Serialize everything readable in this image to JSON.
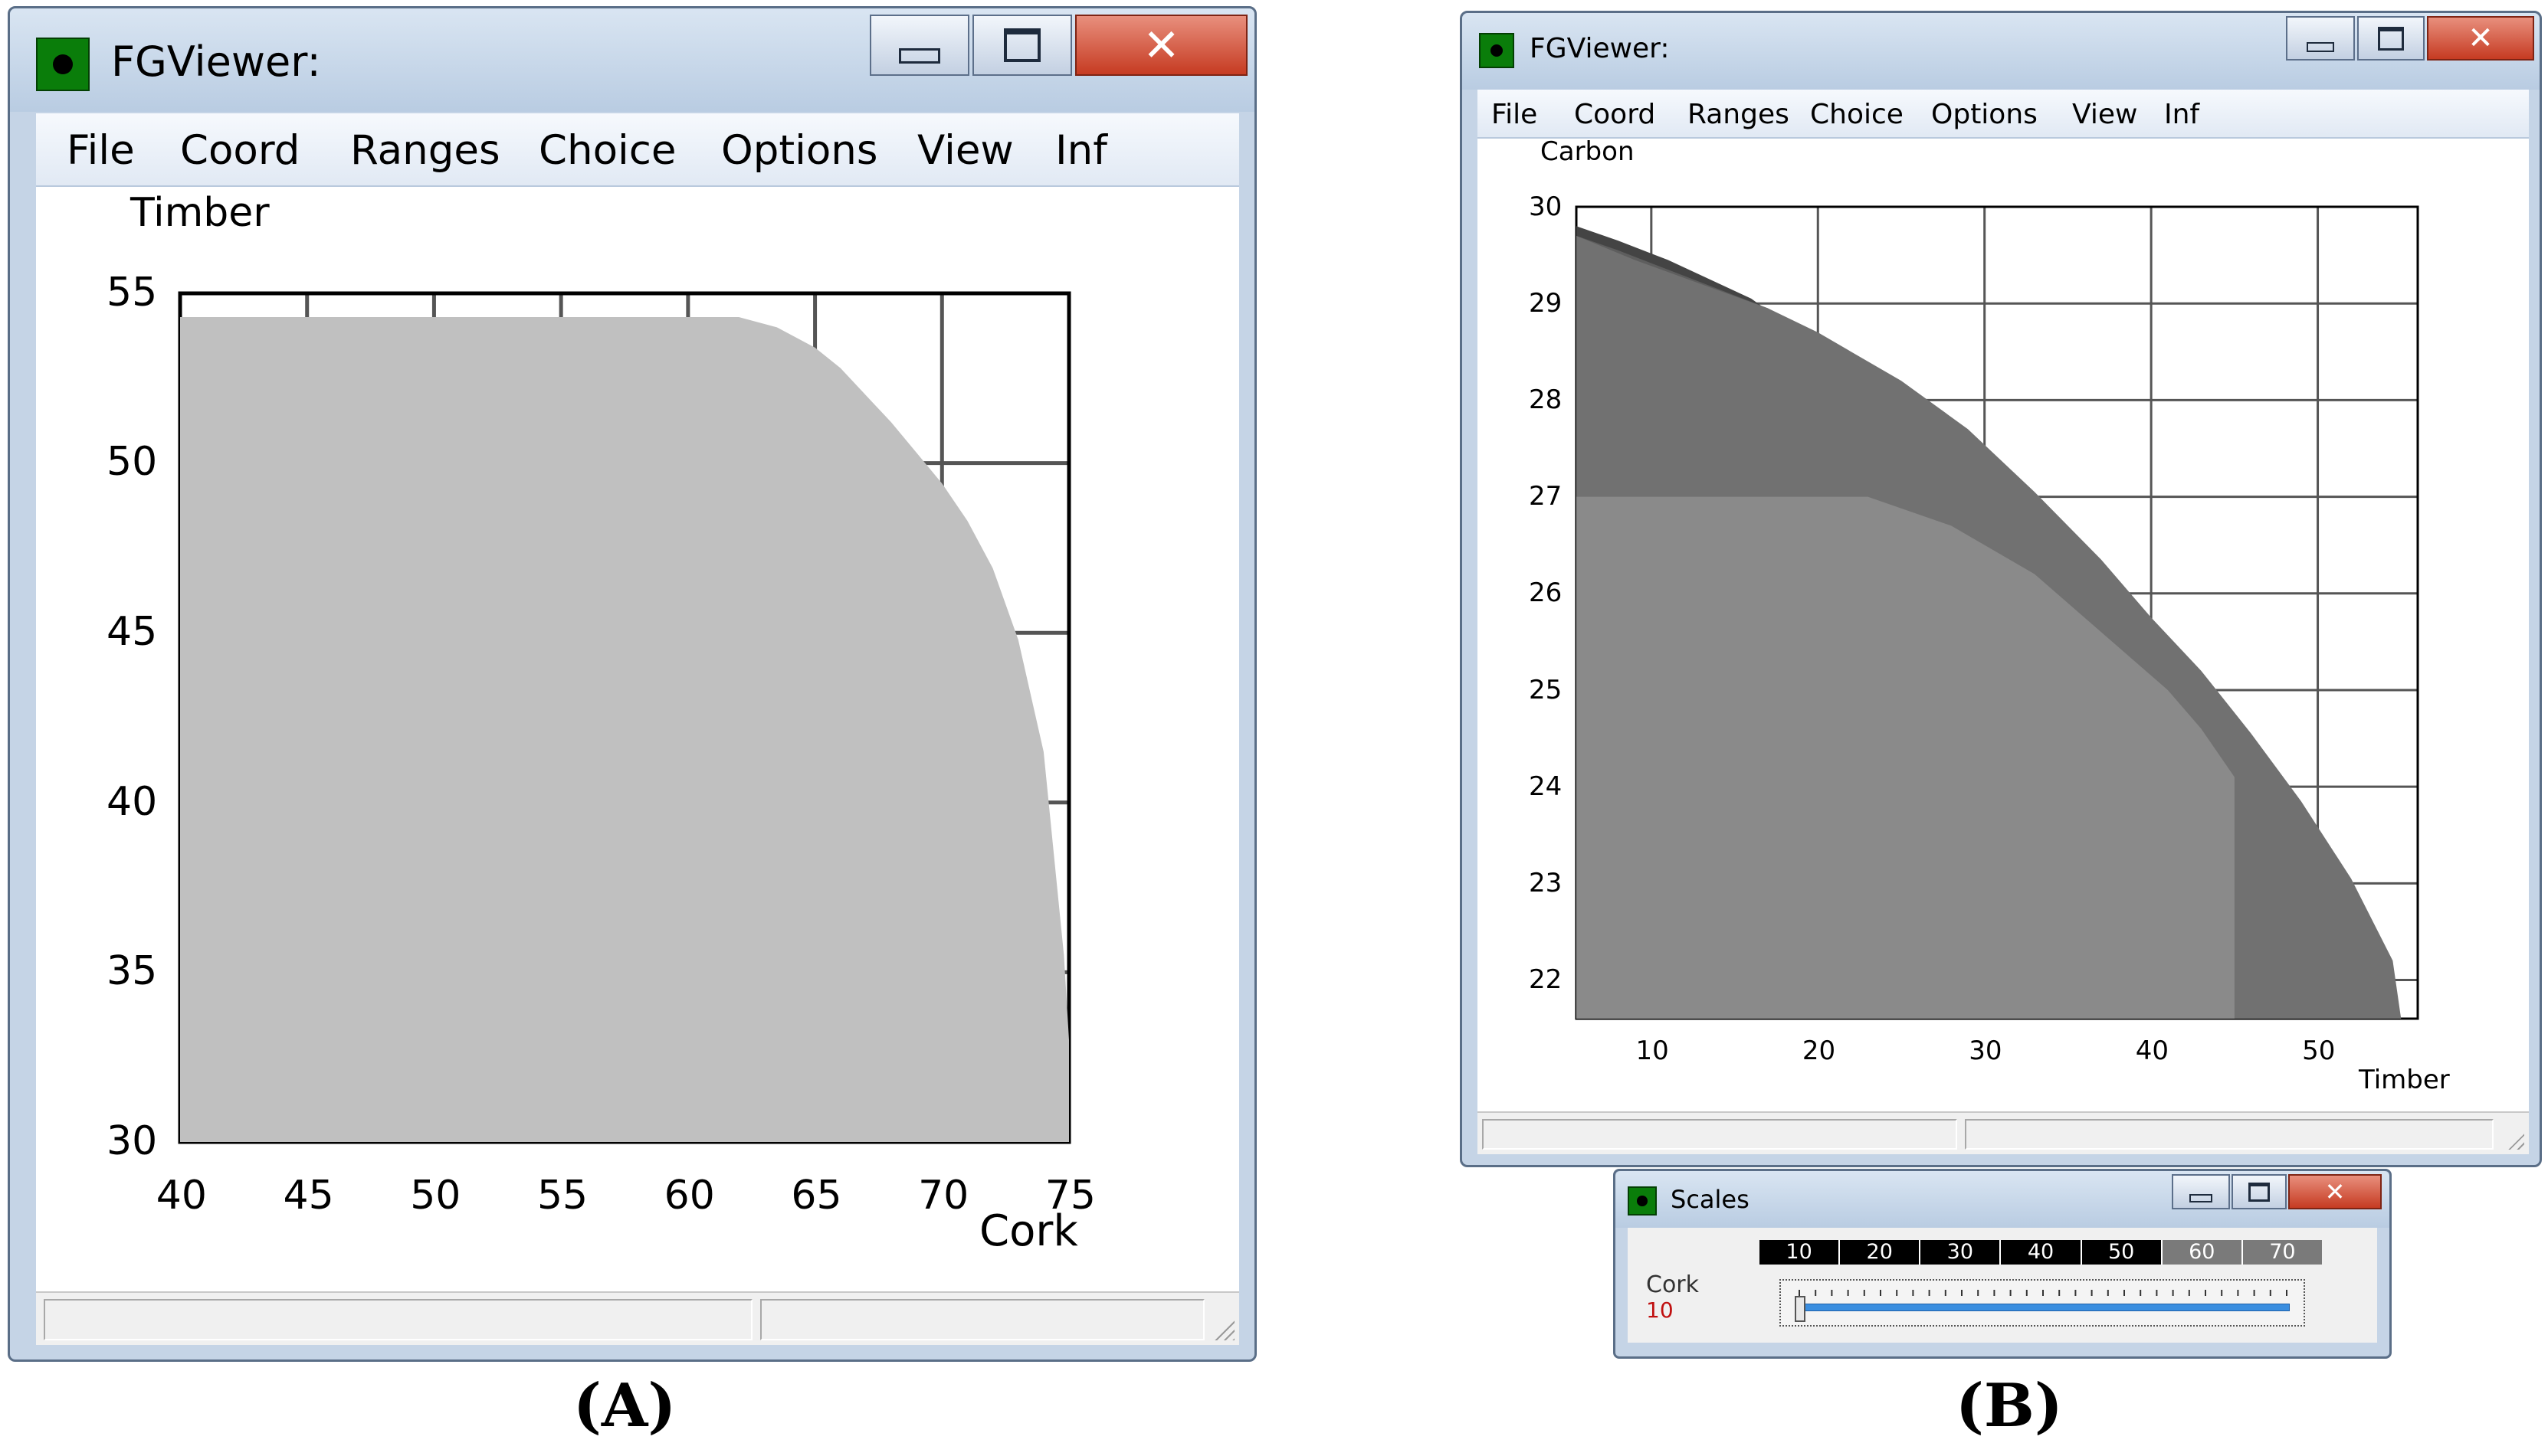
{
  "panels": [
    {
      "label": "(A)",
      "window": {
        "title": "FGViewer:",
        "menu": [
          "File",
          "Coord",
          "Ranges",
          "Choice",
          "Options",
          "View",
          "Inf"
        ],
        "controls": [
          "minimize-icon",
          "maximize-icon",
          "close-icon"
        ],
        "status_panes": 2
      },
      "chart_data": {
        "type": "area",
        "ylabel": "Timber",
        "xlabel": "Cork",
        "xlim": [
          40,
          75
        ],
        "ylim": [
          30,
          55
        ],
        "xticks": [
          "40",
          "45",
          "50",
          "55",
          "60",
          "65",
          "70",
          "75"
        ],
        "yticks": [
          "30",
          "35",
          "40",
          "45",
          "50",
          "55"
        ],
        "grid": true,
        "series": [
          {
            "color": "#c0c0c0",
            "boundary": [
              [
                40,
                54.3
              ],
              [
                62,
                54.3
              ],
              [
                63.5,
                54
              ],
              [
                65,
                53.4
              ],
              [
                66,
                52.8
              ],
              [
                67,
                52
              ],
              [
                68,
                51.2
              ],
              [
                69,
                50.3
              ],
              [
                70,
                49.4
              ],
              [
                71,
                48.3
              ],
              [
                72,
                46.9
              ],
              [
                73,
                44.8
              ],
              [
                74,
                41.5
              ],
              [
                74.8,
                35.5
              ],
              [
                75,
                33
              ],
              [
                75,
                30
              ]
            ]
          }
        ]
      }
    },
    {
      "label": "(B)",
      "window": {
        "title": "FGViewer:",
        "menu": [
          "File",
          "Coord",
          "Ranges",
          "Choice",
          "Options",
          "View",
          "Inf"
        ],
        "controls": [
          "minimize-icon",
          "maximize-icon",
          "close-icon"
        ],
        "status_panes": 2
      },
      "chart_data": {
        "type": "area",
        "ylabel": "Carbon",
        "xlabel": "Timber",
        "xlim": [
          5.5,
          56
        ],
        "ylim": [
          21.6,
          30
        ],
        "xticks": [
          "10",
          "20",
          "30",
          "40",
          "50"
        ],
        "yticks": [
          "22",
          "23",
          "24",
          "25",
          "26",
          "27",
          "28",
          "29",
          "30"
        ],
        "grid": true,
        "series": [
          {
            "color": "#444444",
            "boundary": [
              [
                5.5,
                29.8
              ],
              [
                8,
                29.65
              ],
              [
                11,
                29.45
              ],
              [
                13.5,
                29.25
              ],
              [
                16,
                29.05
              ],
              [
                18,
                28.8
              ]
            ]
          },
          {
            "color": "#5e5e5e",
            "boundary": [
              [
                5.5,
                29.7
              ],
              [
                8,
                29.55
              ],
              [
                11,
                29.35
              ],
              [
                14,
                29.15
              ],
              [
                17,
                28.95
              ],
              [
                18.5,
                28.75
              ]
            ]
          },
          {
            "color": "#717171",
            "boundary": [
              [
                5.5,
                29.7
              ],
              [
                9,
                29.45
              ],
              [
                13,
                29.2
              ],
              [
                17,
                28.95
              ],
              [
                20,
                28.7
              ],
              [
                25,
                28.2
              ],
              [
                29,
                27.7
              ],
              [
                33,
                27.05
              ],
              [
                37,
                26.35
              ],
              [
                40,
                25.75
              ],
              [
                43,
                25.2
              ],
              [
                46,
                24.55
              ],
              [
                49,
                23.85
              ],
              [
                52,
                23.05
              ],
              [
                54.5,
                22.2
              ],
              [
                55,
                21.6
              ]
            ]
          },
          {
            "color": "#8a8a8a",
            "boundary": [
              [
                5.5,
                27
              ],
              [
                23,
                27
              ],
              [
                28,
                26.7
              ],
              [
                33,
                26.2
              ],
              [
                37,
                25.6
              ],
              [
                41,
                25
              ],
              [
                43,
                24.6
              ],
              [
                45,
                24.1
              ],
              [
                45,
                21.6
              ]
            ]
          }
        ]
      },
      "scales_window": {
        "title": "Scales",
        "strip_values": [
          "10",
          "20",
          "30",
          "40",
          "50",
          "60",
          "70"
        ],
        "axis_name": "Cork",
        "axis_value": "10",
        "slider_min": 10,
        "slider_max": 70,
        "slider_value": 10
      }
    }
  ]
}
